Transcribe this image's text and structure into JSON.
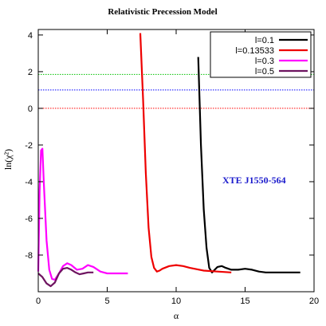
{
  "chart_data": {
    "type": "line",
    "title": "Relativistic Precession Model",
    "xlabel": "α",
    "ylabel": "ln(χ²)",
    "xlim": [
      0,
      20
    ],
    "ylim": [
      -10,
      4.3
    ],
    "x_ticks": [
      "0",
      "5",
      "10",
      "15",
      "20"
    ],
    "y_ticks": [
      "4",
      "2",
      "0",
      "-2",
      "-4",
      "-6",
      "-8"
    ],
    "annotation": "XTE J1550-564",
    "legend_position": "top-right",
    "reference_lines": [
      {
        "y": 1.85,
        "color": "#00c000"
      },
      {
        "y": 1.0,
        "color": "#0000ff"
      },
      {
        "y": 0.0,
        "color": "#ff0000"
      }
    ],
    "series": [
      {
        "name": "l=0.1",
        "color": "#000000",
        "x": [
          11.6,
          11.8,
          12.0,
          12.2,
          12.4,
          12.6,
          12.8,
          13.0,
          13.3,
          13.6,
          14.0,
          14.5,
          15.0,
          15.5,
          16.0,
          16.5,
          17.0,
          18.0,
          19.0
        ],
        "y": [
          2.8,
          -2.0,
          -5.5,
          -7.6,
          -8.7,
          -8.95,
          -8.8,
          -8.65,
          -8.6,
          -8.7,
          -8.8,
          -8.8,
          -8.75,
          -8.8,
          -8.9,
          -8.95,
          -8.95,
          -8.95,
          -8.95
        ]
      },
      {
        "name": "l=0.13533",
        "color": "#ee0000",
        "x": [
          7.4,
          7.6,
          7.8,
          8.0,
          8.2,
          8.4,
          8.6,
          8.8,
          9.0,
          9.5,
          10.0,
          10.5,
          11.0,
          12.0,
          13.0,
          14.0
        ],
        "y": [
          4.1,
          0.5,
          -3.5,
          -6.5,
          -8.1,
          -8.7,
          -8.9,
          -8.85,
          -8.75,
          -8.6,
          -8.55,
          -8.6,
          -8.7,
          -8.85,
          -8.9,
          -8.95
        ]
      },
      {
        "name": "l=0.3",
        "color": "#ff00ff",
        "x": [
          0.0,
          0.1,
          0.2,
          0.3,
          0.4,
          0.6,
          0.8,
          1.0,
          1.2,
          1.5,
          1.8,
          2.1,
          2.4,
          2.8,
          3.2,
          3.6,
          4.0,
          4.5,
          5.0,
          5.5,
          6.0,
          6.5
        ],
        "y": [
          -8.9,
          -4.5,
          -2.3,
          -2.2,
          -4.0,
          -7.2,
          -8.8,
          -9.3,
          -9.35,
          -9.0,
          -8.6,
          -8.45,
          -8.55,
          -8.8,
          -8.75,
          -8.55,
          -8.65,
          -8.9,
          -9.0,
          -9.0,
          -9.0,
          -9.0
        ]
      },
      {
        "name": "l=0.5",
        "color": "#6e1460",
        "x": [
          0.0,
          0.3,
          0.6,
          0.9,
          1.2,
          1.5,
          1.8,
          2.1,
          2.4,
          2.7,
          3.0,
          3.3,
          3.6,
          4.0
        ],
        "y": [
          -9.0,
          -9.2,
          -9.55,
          -9.7,
          -9.5,
          -9.0,
          -8.75,
          -8.7,
          -8.8,
          -8.95,
          -9.05,
          -9.0,
          -8.95,
          -8.95
        ]
      }
    ]
  }
}
